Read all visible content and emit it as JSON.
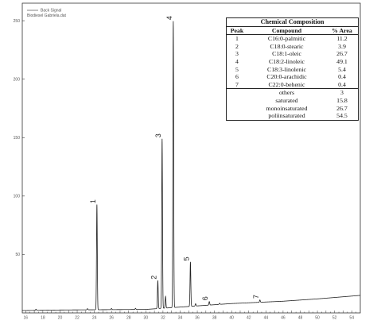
{
  "legend": {
    "line1": "Back Signal",
    "line2": "Biodiesel Gabriela.dat"
  },
  "table": {
    "title": "Chemical Composition",
    "headers": [
      "Peak",
      "Compound",
      "% Area"
    ],
    "rows": [
      [
        "1",
        "C16:0-palmitic",
        "11.2"
      ],
      [
        "2",
        "C18:0-stearic",
        "3.9"
      ],
      [
        "3",
        "C18:1-oleic",
        "26.7"
      ],
      [
        "4",
        "C18:2-linoleic",
        "49.1"
      ],
      [
        "5",
        "C18:3-linolenic",
        "5.4"
      ],
      [
        "6",
        "C20:0-arachidic",
        "0.4"
      ],
      [
        "7",
        "C22:0-behenic",
        "0.4"
      ]
    ],
    "summary": [
      [
        "others",
        "3"
      ],
      [
        "saturated",
        "15.8"
      ],
      [
        "monoinsaturated",
        "26.7"
      ],
      [
        "poliinsaturated",
        "54.5"
      ]
    ]
  },
  "chart_data": {
    "type": "line",
    "title": "",
    "xlabel": "",
    "ylabel": "",
    "xlim": [
      15.6,
      55
    ],
    "ylim": [
      0,
      265
    ],
    "x_ticks": [
      16,
      18,
      20,
      22,
      24,
      26,
      28,
      30,
      32,
      34,
      36,
      38,
      40,
      42,
      44,
      46,
      48,
      50,
      52,
      54
    ],
    "y_ticks": [
      50,
      100,
      150,
      200,
      250
    ],
    "series": [
      {
        "name": "Back Signal",
        "baseline": [
          [
            15.6,
            2
          ],
          [
            20,
            2.5
          ],
          [
            30,
            3
          ],
          [
            34,
            5
          ],
          [
            40,
            8
          ],
          [
            46,
            10
          ],
          [
            50,
            12
          ],
          [
            55,
            15
          ]
        ],
        "peaks": [
          {
            "label": "1",
            "x": 24.3,
            "height": 90
          },
          {
            "label": "2",
            "x": 31.4,
            "height": 24
          },
          {
            "label": "3",
            "x": 31.9,
            "height": 145
          },
          {
            "label": "4",
            "x": 33.2,
            "height": 245
          },
          {
            "label": "5",
            "x": 35.2,
            "height": 38
          },
          {
            "label": "6",
            "x": 37.4,
            "height": 3
          },
          {
            "label": "7",
            "x": 43.3,
            "height": 2
          }
        ],
        "minor_peaks": [
          {
            "x": 17.2,
            "height": 1
          },
          {
            "x": 23.2,
            "height": 1
          },
          {
            "x": 26.0,
            "height": 1
          },
          {
            "x": 28.8,
            "height": 1
          },
          {
            "x": 32.3,
            "height": 10
          },
          {
            "x": 35.8,
            "height": 2
          },
          {
            "x": 38.6,
            "height": 1
          }
        ]
      }
    ]
  }
}
